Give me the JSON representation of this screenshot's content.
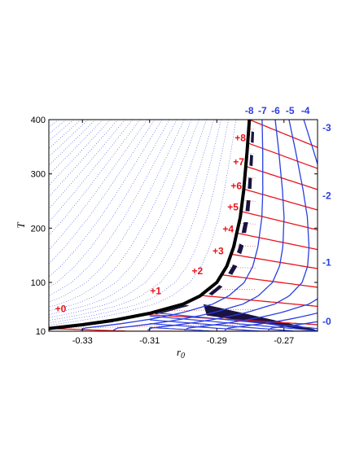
{
  "chart_data": {
    "type": "line",
    "title": "",
    "xlabel": "r",
    "xlabel_sub": "0",
    "ylabel": "T",
    "xlim": [
      -0.34,
      -0.26
    ],
    "ylim": [
      10,
      400
    ],
    "xticks": [
      -0.33,
      -0.31,
      -0.29,
      -0.27
    ],
    "xtick_labels": [
      "-0.33",
      "-0.31",
      "-0.29",
      "-0.27"
    ],
    "yticks": [
      10,
      100,
      200,
      300,
      400
    ],
    "ytick_labels": [
      "10",
      "100",
      "200",
      "300",
      "400"
    ],
    "grid": false,
    "colors": {
      "red_curves": "#e8141c",
      "blue_curves": "#2a3ee0",
      "boundary": "#000000",
      "shaded": "#1a1240",
      "dotted": "#3f4fe0"
    },
    "boundary_curve": {
      "x": [
        -0.34,
        -0.33,
        -0.32,
        -0.31,
        -0.3,
        -0.295,
        -0.29,
        -0.287,
        -0.285,
        -0.283,
        -0.282,
        -0.281,
        -0.2803
      ],
      "y": [
        15,
        22,
        31,
        43,
        60,
        75,
        100,
        130,
        165,
        220,
        270,
        340,
        400
      ]
    },
    "red_labels": [
      {
        "text": "+0",
        "x": -0.3365,
        "y": 45
      },
      {
        "text": "+1",
        "x": -0.3082,
        "y": 78
      },
      {
        "text": "+2",
        "x": -0.2958,
        "y": 115
      },
      {
        "text": "+3",
        "x": -0.2896,
        "y": 152
      },
      {
        "text": "+4",
        "x": -0.2866,
        "y": 192
      },
      {
        "text": "+5",
        "x": -0.2852,
        "y": 233
      },
      {
        "text": "+6",
        "x": -0.2842,
        "y": 272
      },
      {
        "text": "+7",
        "x": -0.2835,
        "y": 316
      },
      {
        "text": "+8",
        "x": -0.283,
        "y": 360
      }
    ],
    "blue_top_labels": [
      {
        "text": "-8",
        "x": -0.2803
      },
      {
        "text": "-7",
        "x": -0.2764
      },
      {
        "text": "-6",
        "x": -0.2725
      },
      {
        "text": "-5",
        "x": -0.2682
      },
      {
        "text": "-4",
        "x": -0.2636
      }
    ],
    "blue_right_labels": [
      {
        "text": "-3",
        "y": 385
      },
      {
        "text": "-2",
        "y": 260
      },
      {
        "text": "-1",
        "y": 137
      },
      {
        "text": "-0",
        "y": 28
      }
    ],
    "red_curve_levels": [
      15,
      41,
      76,
      114,
      152,
      191,
      231,
      272,
      314,
      357,
      400
    ],
    "blue_curve_offsets": [
      0.0,
      0.0038,
      0.0077,
      0.0118,
      0.0162,
      0.021,
      0.0262
    ]
  }
}
